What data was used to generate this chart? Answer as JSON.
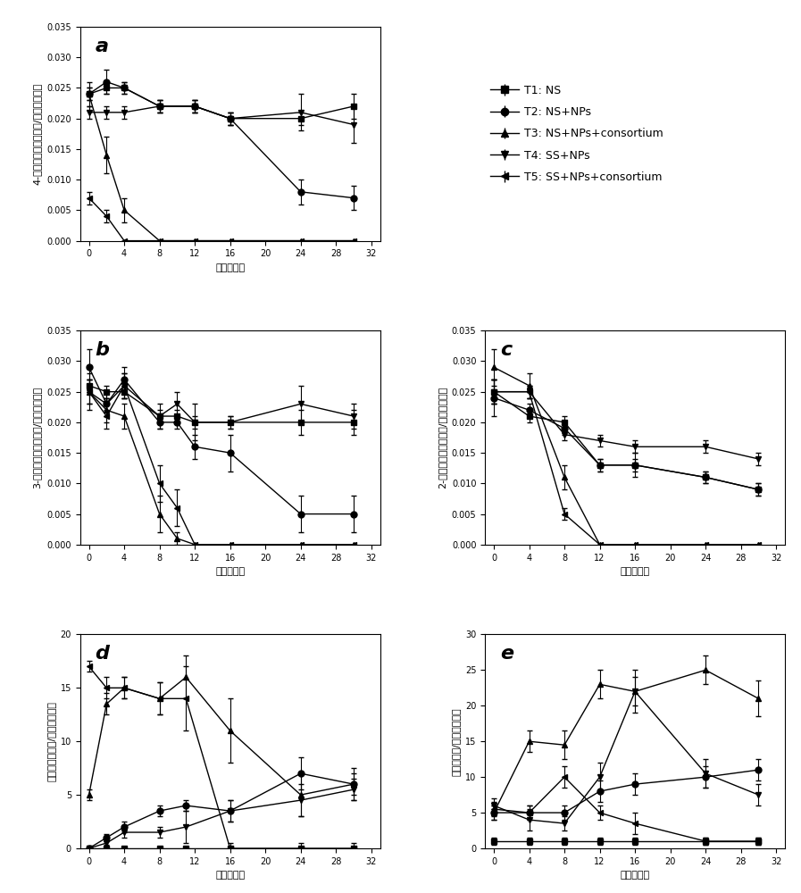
{
  "legend_labels": [
    "T1: NS",
    "T2: NS+NPs",
    "T3: NS+NPs+consortium",
    "T4: SS+NPs",
    "T5: SS+NPs+consortium"
  ],
  "markers": [
    "s",
    "o",
    "^",
    "v",
    "<"
  ],
  "panel_a": {
    "title": "a",
    "ylabel": "4-硒基苯酚浓度（毫克/克土壤干重）",
    "xlabel": "时间（天）",
    "ylim": [
      0,
      0.035
    ],
    "yticks": [
      0.0,
      0.005,
      0.01,
      0.015,
      0.02,
      0.025,
      0.03,
      0.035
    ],
    "xticks": [
      0,
      4,
      8,
      12,
      16,
      20,
      24,
      28,
      32
    ],
    "T1": {
      "x": [
        0,
        2,
        4,
        8,
        12,
        16,
        24,
        30
      ],
      "y": [
        0.024,
        0.025,
        0.025,
        0.022,
        0.022,
        0.02,
        0.02,
        0.022
      ],
      "err": [
        0.001,
        0.001,
        0.001,
        0.001,
        0.001,
        0.001,
        0.001,
        0.002
      ]
    },
    "T2": {
      "x": [
        0,
        2,
        4,
        8,
        12,
        16,
        24,
        30
      ],
      "y": [
        0.024,
        0.026,
        0.025,
        0.022,
        0.022,
        0.02,
        0.008,
        0.007
      ],
      "err": [
        0.001,
        0.002,
        0.001,
        0.001,
        0.001,
        0.001,
        0.002,
        0.002
      ]
    },
    "T3": {
      "x": [
        0,
        2,
        4,
        8,
        12,
        16,
        24,
        30
      ],
      "y": [
        0.024,
        0.014,
        0.005,
        0.0,
        0.0,
        0.0,
        0.0,
        0.0
      ],
      "err": [
        0.002,
        0.003,
        0.002,
        0.0,
        0.0,
        0.0,
        0.0,
        0.0
      ]
    },
    "T4": {
      "x": [
        0,
        2,
        4,
        8,
        12,
        16,
        24,
        30
      ],
      "y": [
        0.021,
        0.021,
        0.021,
        0.022,
        0.022,
        0.02,
        0.021,
        0.019
      ],
      "err": [
        0.001,
        0.001,
        0.001,
        0.001,
        0.001,
        0.001,
        0.003,
        0.003
      ]
    },
    "T5": {
      "x": [
        0,
        2,
        4,
        8,
        12,
        16,
        24,
        30
      ],
      "y": [
        0.007,
        0.004,
        0.0,
        0.0,
        0.0,
        0.0,
        0.0,
        0.0
      ],
      "err": [
        0.001,
        0.001,
        0.0,
        0.0,
        0.0,
        0.0,
        0.0,
        0.0
      ]
    }
  },
  "panel_b": {
    "title": "b",
    "ylabel": "3-硒基苯酚浓度（毫克/克土壤干重）",
    "xlabel": "时间（天）",
    "ylim": [
      0,
      0.035
    ],
    "yticks": [
      0.0,
      0.005,
      0.01,
      0.015,
      0.02,
      0.025,
      0.03,
      0.035
    ],
    "xticks": [
      0,
      4,
      8,
      12,
      16,
      20,
      24,
      28,
      32
    ],
    "T1": {
      "x": [
        0,
        2,
        4,
        8,
        10,
        12,
        16,
        24,
        30
      ],
      "y": [
        0.026,
        0.025,
        0.025,
        0.021,
        0.021,
        0.02,
        0.02,
        0.02,
        0.02
      ],
      "err": [
        0.001,
        0.001,
        0.001,
        0.001,
        0.001,
        0.001,
        0.001,
        0.002,
        0.002
      ]
    },
    "T2": {
      "x": [
        0,
        2,
        4,
        8,
        10,
        12,
        16,
        24,
        30
      ],
      "y": [
        0.029,
        0.023,
        0.027,
        0.02,
        0.02,
        0.016,
        0.015,
        0.005,
        0.005
      ],
      "err": [
        0.003,
        0.002,
        0.002,
        0.001,
        0.001,
        0.002,
        0.003,
        0.003,
        0.003
      ]
    },
    "T3": {
      "x": [
        0,
        2,
        4,
        8,
        10,
        12,
        16,
        24,
        30
      ],
      "y": [
        0.025,
        0.022,
        0.021,
        0.005,
        0.001,
        0.0,
        0.0,
        0.0,
        0.0
      ],
      "err": [
        0.003,
        0.002,
        0.002,
        0.003,
        0.001,
        0.0,
        0.0,
        0.0,
        0.0
      ]
    },
    "T4": {
      "x": [
        0,
        2,
        4,
        8,
        10,
        12,
        16,
        24,
        30
      ],
      "y": [
        0.025,
        0.023,
        0.026,
        0.021,
        0.023,
        0.02,
        0.02,
        0.023,
        0.021
      ],
      "err": [
        0.002,
        0.001,
        0.002,
        0.002,
        0.002,
        0.003,
        0.001,
        0.003,
        0.002
      ]
    },
    "T5": {
      "x": [
        0,
        2,
        4,
        8,
        10,
        12,
        16,
        24,
        30
      ],
      "y": [
        0.025,
        0.021,
        0.026,
        0.01,
        0.006,
        0.0,
        0.0,
        0.0,
        0.0
      ],
      "err": [
        0.002,
        0.002,
        0.002,
        0.003,
        0.003,
        0.0,
        0.0,
        0.0,
        0.0
      ]
    }
  },
  "panel_c": {
    "title": "c",
    "ylabel": "2-硒基苯酚浓度（毫克/克土壤干重）",
    "xlabel": "时间（天）",
    "ylim": [
      0,
      0.035
    ],
    "yticks": [
      0.0,
      0.005,
      0.01,
      0.015,
      0.02,
      0.025,
      0.03,
      0.035
    ],
    "xticks": [
      0,
      4,
      8,
      12,
      16,
      20,
      24,
      28,
      32
    ],
    "T1": {
      "x": [
        0,
        4,
        8,
        12,
        16,
        24,
        30
      ],
      "y": [
        0.025,
        0.021,
        0.02,
        0.013,
        0.013,
        0.011,
        0.009
      ],
      "err": [
        0.002,
        0.001,
        0.001,
        0.001,
        0.001,
        0.001,
        0.001
      ]
    },
    "T2": {
      "x": [
        0,
        4,
        8,
        12,
        16,
        24,
        30
      ],
      "y": [
        0.024,
        0.022,
        0.019,
        0.013,
        0.013,
        0.011,
        0.009
      ],
      "err": [
        0.003,
        0.001,
        0.001,
        0.001,
        0.002,
        0.001,
        0.001
      ]
    },
    "T3": {
      "x": [
        0,
        4,
        8,
        12,
        16,
        24,
        30
      ],
      "y": [
        0.029,
        0.026,
        0.011,
        0.0,
        0.0,
        0.0,
        0.0
      ],
      "err": [
        0.003,
        0.002,
        0.002,
        0.0,
        0.0,
        0.0,
        0.0
      ]
    },
    "T4": {
      "x": [
        0,
        4,
        8,
        12,
        16,
        24,
        30
      ],
      "y": [
        0.025,
        0.025,
        0.018,
        0.017,
        0.016,
        0.016,
        0.014
      ],
      "err": [
        0.002,
        0.001,
        0.001,
        0.001,
        0.001,
        0.001,
        0.001
      ]
    },
    "T5": {
      "x": [
        0,
        4,
        8,
        12,
        16,
        24,
        30
      ],
      "y": [
        0.025,
        0.025,
        0.005,
        0.0,
        0.0,
        0.0,
        0.0
      ],
      "err": [
        0.002,
        0.001,
        0.001,
        0.0,
        0.0,
        0.0,
        0.0
      ]
    }
  },
  "panel_d": {
    "title": "d",
    "ylabel": "亚硒酸根（微克/克土壤干重）",
    "xlabel": "时间（天）",
    "ylim": [
      0,
      20
    ],
    "yticks": [
      0,
      5,
      10,
      15,
      20
    ],
    "xticks": [
      0,
      4,
      8,
      12,
      16,
      20,
      24,
      28,
      32
    ],
    "T1": {
      "x": [
        0,
        2,
        4,
        8,
        11,
        16,
        24,
        30
      ],
      "y": [
        0.0,
        0.0,
        0.0,
        0.0,
        0.0,
        0.0,
        0.0,
        0.0
      ],
      "err": [
        0.0,
        0.0,
        0.0,
        0.0,
        0.0,
        0.0,
        0.0,
        0.0
      ]
    },
    "T2": {
      "x": [
        0,
        2,
        4,
        8,
        11,
        16,
        24,
        30
      ],
      "y": [
        0.0,
        1.0,
        2.0,
        3.5,
        4.0,
        3.5,
        7.0,
        6.0
      ],
      "err": [
        0.0,
        0.3,
        0.5,
        0.5,
        0.5,
        1.0,
        1.5,
        1.0
      ]
    },
    "T3": {
      "x": [
        0,
        2,
        4,
        8,
        11,
        16,
        24,
        30
      ],
      "y": [
        5.0,
        13.5,
        15.0,
        14.0,
        16.0,
        11.0,
        5.0,
        6.0
      ],
      "err": [
        0.5,
        1.0,
        1.0,
        1.5,
        2.0,
        3.0,
        2.0,
        1.5
      ]
    },
    "T4": {
      "x": [
        0,
        2,
        4,
        8,
        11,
        16,
        24,
        30
      ],
      "y": [
        0.0,
        0.5,
        1.5,
        1.5,
        2.0,
        3.5,
        4.5,
        5.5
      ],
      "err": [
        0.0,
        0.2,
        0.5,
        0.5,
        1.5,
        1.0,
        1.5,
        1.0
      ]
    },
    "T5": {
      "x": [
        0,
        2,
        4,
        8,
        11,
        16,
        24,
        30
      ],
      "y": [
        17.0,
        15.0,
        15.0,
        14.0,
        14.0,
        0.0,
        0.0,
        0.0
      ],
      "err": [
        0.5,
        1.0,
        1.0,
        1.5,
        3.0,
        0.5,
        0.5,
        0.5
      ]
    }
  },
  "panel_e": {
    "title": "e",
    "ylabel": "鐵根（微克/克土壤干重）",
    "xlabel": "时间（天）",
    "ylim": [
      0,
      30
    ],
    "yticks": [
      0,
      5,
      10,
      15,
      20,
      25,
      30
    ],
    "xticks": [
      0,
      4,
      8,
      12,
      16,
      20,
      24,
      28,
      32
    ],
    "T1": {
      "x": [
        0,
        4,
        8,
        12,
        16,
        24,
        30
      ],
      "y": [
        1.0,
        1.0,
        1.0,
        1.0,
        1.0,
        1.0,
        1.0
      ],
      "err": [
        0.5,
        0.5,
        0.5,
        0.5,
        0.5,
        0.5,
        0.5
      ]
    },
    "T2": {
      "x": [
        0,
        4,
        8,
        12,
        16,
        24,
        30
      ],
      "y": [
        5.0,
        5.0,
        5.0,
        8.0,
        9.0,
        10.0,
        11.0
      ],
      "err": [
        1.0,
        1.0,
        1.0,
        1.5,
        1.5,
        1.5,
        1.5
      ]
    },
    "T3": {
      "x": [
        0,
        4,
        8,
        12,
        16,
        24,
        30
      ],
      "y": [
        5.0,
        15.0,
        14.5,
        23.0,
        22.0,
        25.0,
        21.0
      ],
      "err": [
        1.0,
        1.5,
        2.0,
        2.0,
        2.0,
        2.0,
        2.5
      ]
    },
    "T4": {
      "x": [
        0,
        4,
        8,
        12,
        16,
        24,
        30
      ],
      "y": [
        6.0,
        4.0,
        3.5,
        10.0,
        22.0,
        10.5,
        7.5
      ],
      "err": [
        1.0,
        1.5,
        1.0,
        2.0,
        3.0,
        2.0,
        1.5
      ]
    },
    "T5": {
      "x": [
        0,
        4,
        8,
        12,
        16,
        24,
        30
      ],
      "y": [
        5.5,
        5.0,
        10.0,
        5.0,
        3.5,
        1.0,
        1.0
      ],
      "err": [
        1.0,
        1.0,
        1.5,
        1.0,
        1.5,
        0.5,
        0.5
      ]
    }
  },
  "line_color": "#000000",
  "marker_size": 5,
  "linewidth": 1.0,
  "elinewidth": 0.8,
  "capsize": 2,
  "label_fontsize": 8,
  "tick_fontsize": 7,
  "title_fontsize": 16,
  "legend_fontsize": 9
}
